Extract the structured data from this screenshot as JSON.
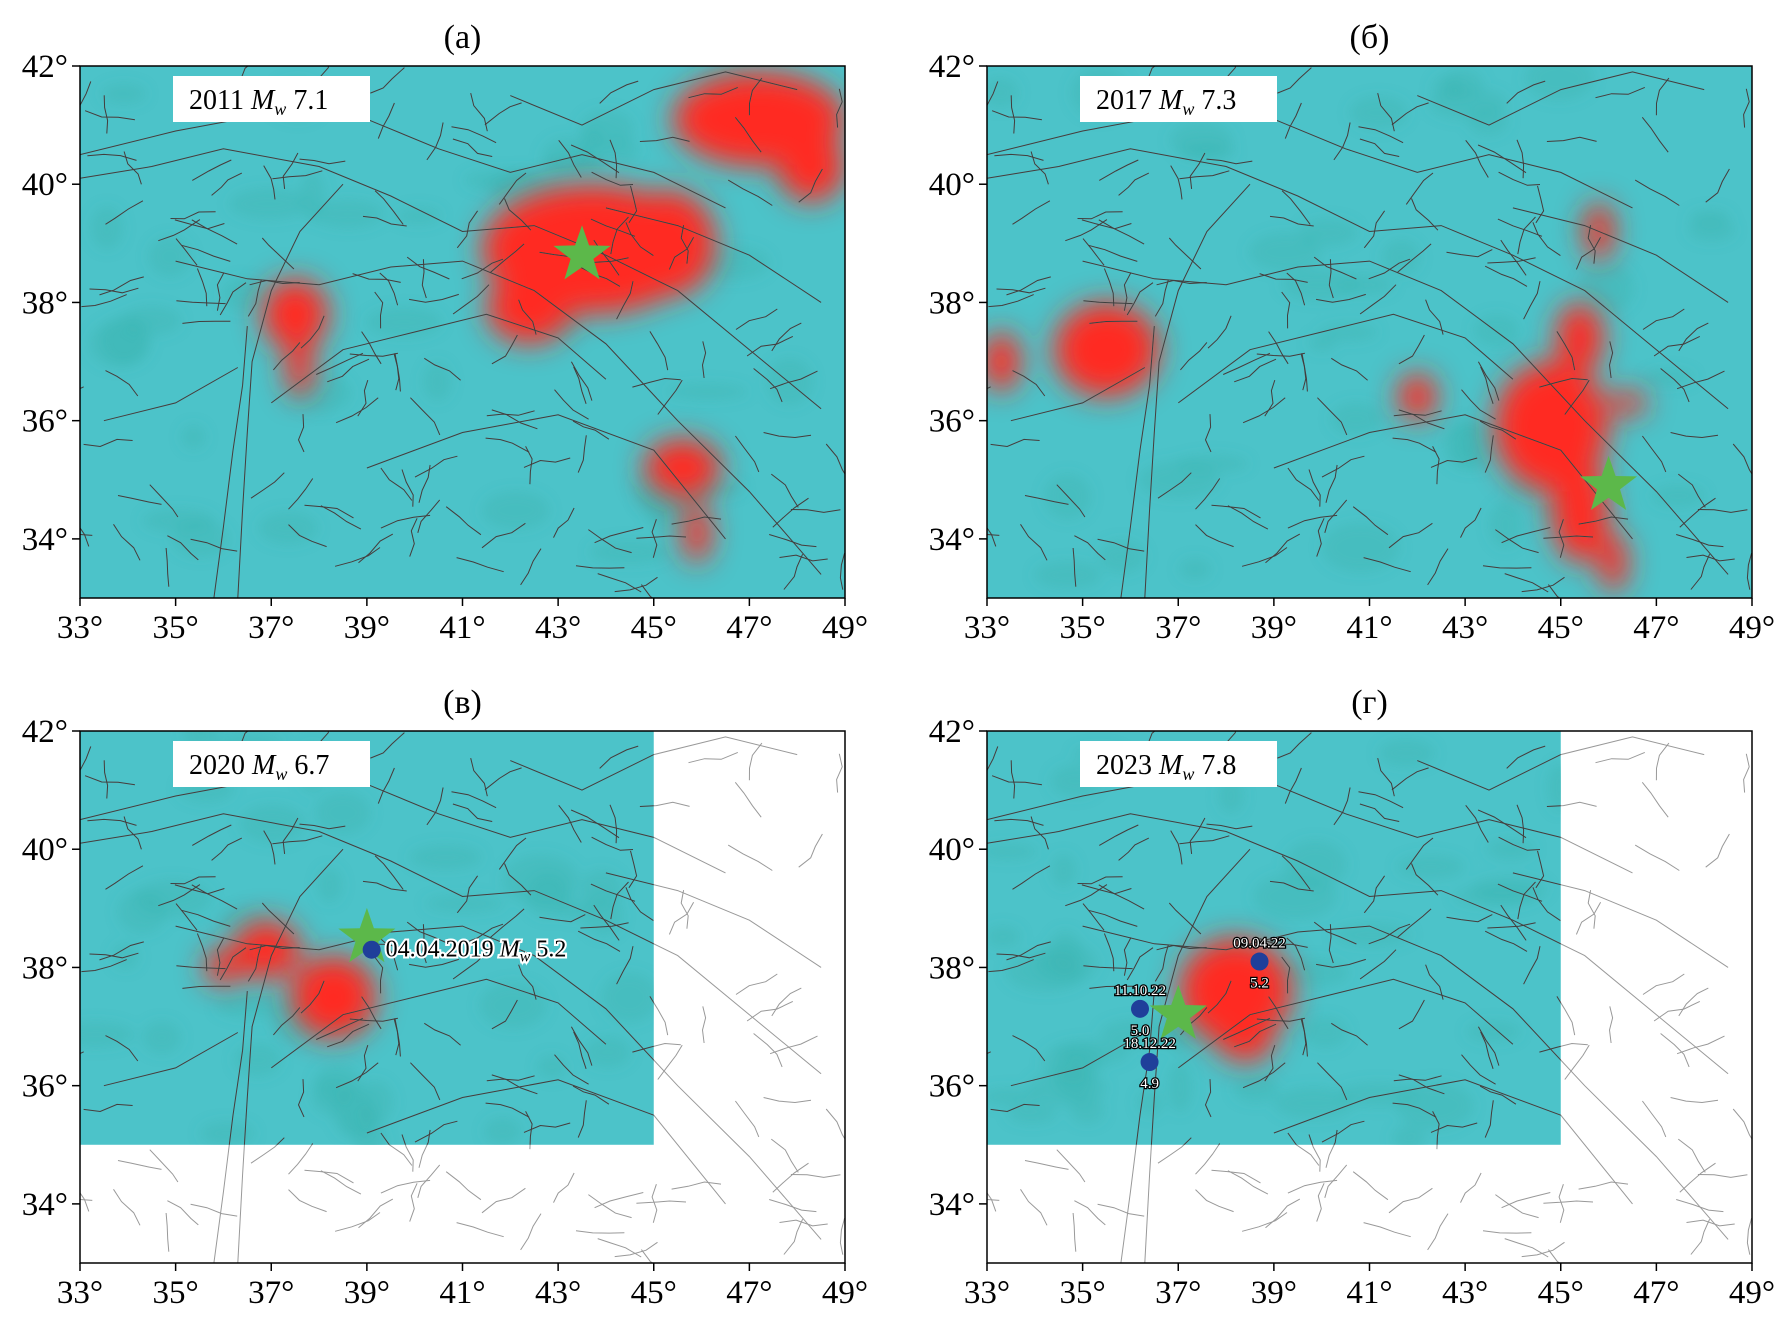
{
  "colors": {
    "background_field": "#4cc3c9",
    "anomaly": "#ff2a22",
    "epicenter_star": "#5cb84a",
    "event_dot": "#1f3f9a",
    "fault_lines": "#222222",
    "outside_fault_lines": "#999999"
  },
  "axes": {
    "lon_ticks": [
      33,
      35,
      37,
      39,
      41,
      43,
      45,
      47,
      49
    ],
    "lat_ticks": [
      34,
      36,
      38,
      40,
      42
    ],
    "lon_range": [
      33,
      49
    ],
    "lat_range": [
      33,
      42
    ],
    "degree_symbol": "°"
  },
  "panels": [
    {
      "letter": "(а)",
      "year": "2011",
      "mag_symbol": "M",
      "mag_sub": "w",
      "mag_value": "7.1",
      "grid_extent": {
        "lon": [
          33,
          49
        ],
        "lat": [
          33,
          42
        ]
      },
      "epicenter": {
        "lon": 43.5,
        "lat": 38.8
      },
      "anomalies": [
        {
          "lon": 43.7,
          "lat": 38.9,
          "rlon": 2.3,
          "rlat": 1.1
        },
        {
          "lon": 45.3,
          "lat": 39.0,
          "rlon": 1.0,
          "rlat": 0.9
        },
        {
          "lon": 42.4,
          "lat": 37.9,
          "rlon": 0.9,
          "rlat": 0.6
        },
        {
          "lon": 47.2,
          "lat": 41.1,
          "rlon": 1.8,
          "rlat": 0.8
        },
        {
          "lon": 48.3,
          "lat": 40.3,
          "rlon": 0.7,
          "rlat": 0.6
        },
        {
          "lon": 37.5,
          "lat": 37.8,
          "rlon": 0.7,
          "rlat": 0.6
        },
        {
          "lon": 37.6,
          "lat": 36.9,
          "rlon": 0.3,
          "rlat": 0.5
        },
        {
          "lon": 45.6,
          "lat": 35.2,
          "rlon": 0.8,
          "rlat": 0.5
        },
        {
          "lon": 45.9,
          "lat": 34.1,
          "rlon": 0.3,
          "rlat": 0.5
        }
      ],
      "events": []
    },
    {
      "letter": "(б)",
      "year": "2017",
      "mag_symbol": "M",
      "mag_sub": "w",
      "mag_value": "7.3",
      "grid_extent": {
        "lon": [
          33,
          49
        ],
        "lat": [
          33,
          42
        ]
      },
      "epicenter": {
        "lon": 46.0,
        "lat": 34.9
      },
      "anomalies": [
        {
          "lon": 35.5,
          "lat": 37.2,
          "rlon": 1.1,
          "rlat": 0.8
        },
        {
          "lon": 33.3,
          "lat": 37.0,
          "rlon": 0.4,
          "rlat": 0.5
        },
        {
          "lon": 44.8,
          "lat": 35.9,
          "rlon": 1.2,
          "rlat": 1.1
        },
        {
          "lon": 45.4,
          "lat": 34.5,
          "rlon": 0.6,
          "rlat": 0.9
        },
        {
          "lon": 46.1,
          "lat": 33.6,
          "rlon": 0.3,
          "rlat": 0.5
        },
        {
          "lon": 45.4,
          "lat": 37.4,
          "rlon": 0.5,
          "rlat": 0.6
        },
        {
          "lon": 45.8,
          "lat": 39.2,
          "rlon": 0.3,
          "rlat": 0.5
        },
        {
          "lon": 42.0,
          "lat": 36.4,
          "rlon": 0.4,
          "rlat": 0.4
        },
        {
          "lon": 46.4,
          "lat": 36.3,
          "rlon": 0.4,
          "rlat": 0.2
        }
      ],
      "events": []
    },
    {
      "letter": "(в)",
      "year": "2020",
      "mag_symbol": "M",
      "mag_sub": "w",
      "mag_value": "6.7",
      "grid_extent": {
        "lon": [
          33,
          45
        ],
        "lat": [
          35,
          42
        ]
      },
      "epicenter": {
        "lon": 39.0,
        "lat": 38.5
      },
      "anomalies": [
        {
          "lon": 36.9,
          "lat": 38.3,
          "rlon": 0.7,
          "rlat": 0.5
        },
        {
          "lon": 38.3,
          "lat": 37.5,
          "rlon": 0.9,
          "rlat": 0.7
        },
        {
          "lon": 36.0,
          "lat": 38.0,
          "rlon": 0.4,
          "rlat": 0.3
        }
      ],
      "events": [
        {
          "lon": 39.1,
          "lat": 38.3,
          "date": "04.04.2019",
          "mag_symbol": "M",
          "mag_sub": "w",
          "mag": "5.2"
        }
      ]
    },
    {
      "letter": "(г)",
      "year": "2023",
      "mag_symbol": "M",
      "mag_sub": "w",
      "mag_value": "7.8",
      "grid_extent": {
        "lon": [
          33,
          45
        ],
        "lat": [
          35,
          42
        ]
      },
      "epicenter": {
        "lon": 37.0,
        "lat": 37.2
      },
      "anomalies": [
        {
          "lon": 38.2,
          "lat": 37.6,
          "rlon": 1.2,
          "rlat": 0.9
        },
        {
          "lon": 38.4,
          "lat": 36.8,
          "rlon": 0.6,
          "rlat": 0.4
        }
      ],
      "events": [
        {
          "lon": 38.7,
          "lat": 38.1,
          "date": "09.04.22",
          "mag": "5.2"
        },
        {
          "lon": 36.2,
          "lat": 37.3,
          "date": "11.10.22",
          "mag": "5.0"
        },
        {
          "lon": 36.4,
          "lat": 36.4,
          "date": "18.12.22",
          "mag": "4.9"
        }
      ]
    }
  ]
}
